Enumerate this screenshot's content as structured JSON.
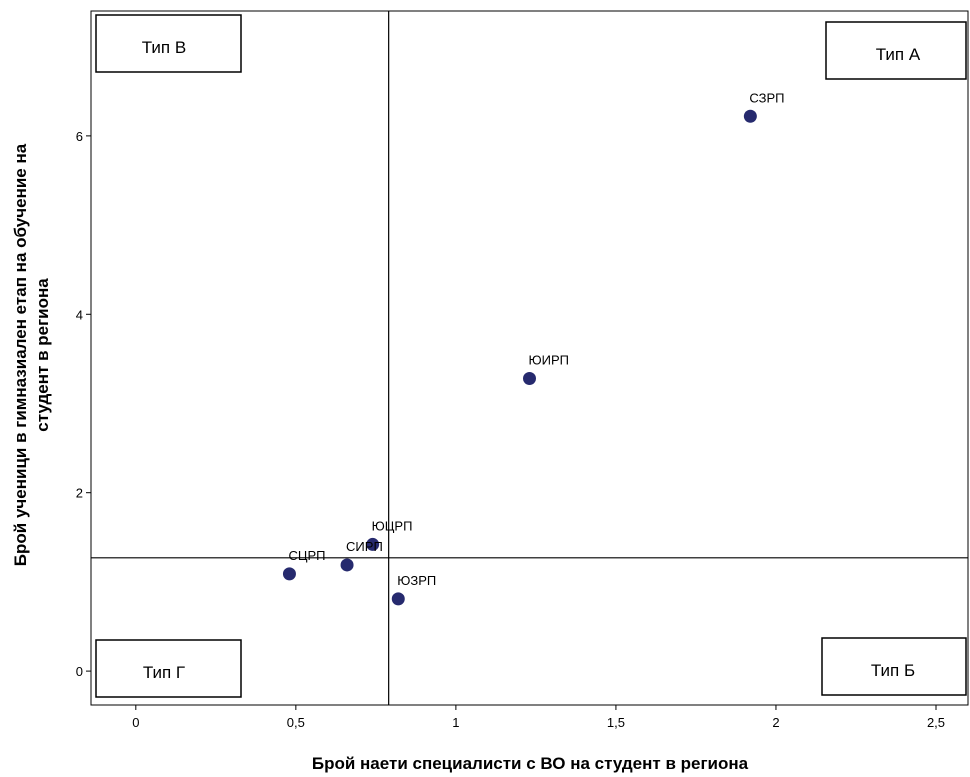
{
  "chart_data": {
    "type": "scatter",
    "xlabel": "Брой наети специалисти с ВО на студент в региона",
    "ylabel_lines": [
      "Брой ученици в гимназиален етап на обучение на",
      "студент в региона"
    ],
    "xlim": [
      -0.14,
      2.6
    ],
    "ylim": [
      -0.38,
      7.4
    ],
    "x_ticks": [
      0,
      0.5,
      1,
      1.5,
      2,
      2.5
    ],
    "x_tick_labels": [
      "0",
      "0,5",
      "1",
      "1,5",
      "2",
      "2,5"
    ],
    "y_ticks": [
      0,
      2,
      4,
      6
    ],
    "y_tick_labels": [
      "0",
      "2",
      "4",
      "6"
    ],
    "reference_lines": {
      "x": 0.79,
      "y": 1.27
    },
    "marker_color": "#262a6e",
    "points": [
      {
        "label": "СЗРП",
        "x": 1.92,
        "y": 6.22
      },
      {
        "label": "ЮИРП",
        "x": 1.23,
        "y": 3.28
      },
      {
        "label": "ЮЦРП",
        "x": 0.74,
        "y": 1.42
      },
      {
        "label": "СЦРП",
        "x": 0.48,
        "y": 1.09
      },
      {
        "label": "СИРП",
        "x": 0.66,
        "y": 1.19
      },
      {
        "label": "ЮЗРП",
        "x": 0.82,
        "y": 0.81
      }
    ],
    "quadrant_labels": {
      "top_left": "Тип В",
      "top_right": "Тип А",
      "bottom_left": "Тип Г",
      "bottom_right": "Тип Б"
    },
    "grid": false
  }
}
